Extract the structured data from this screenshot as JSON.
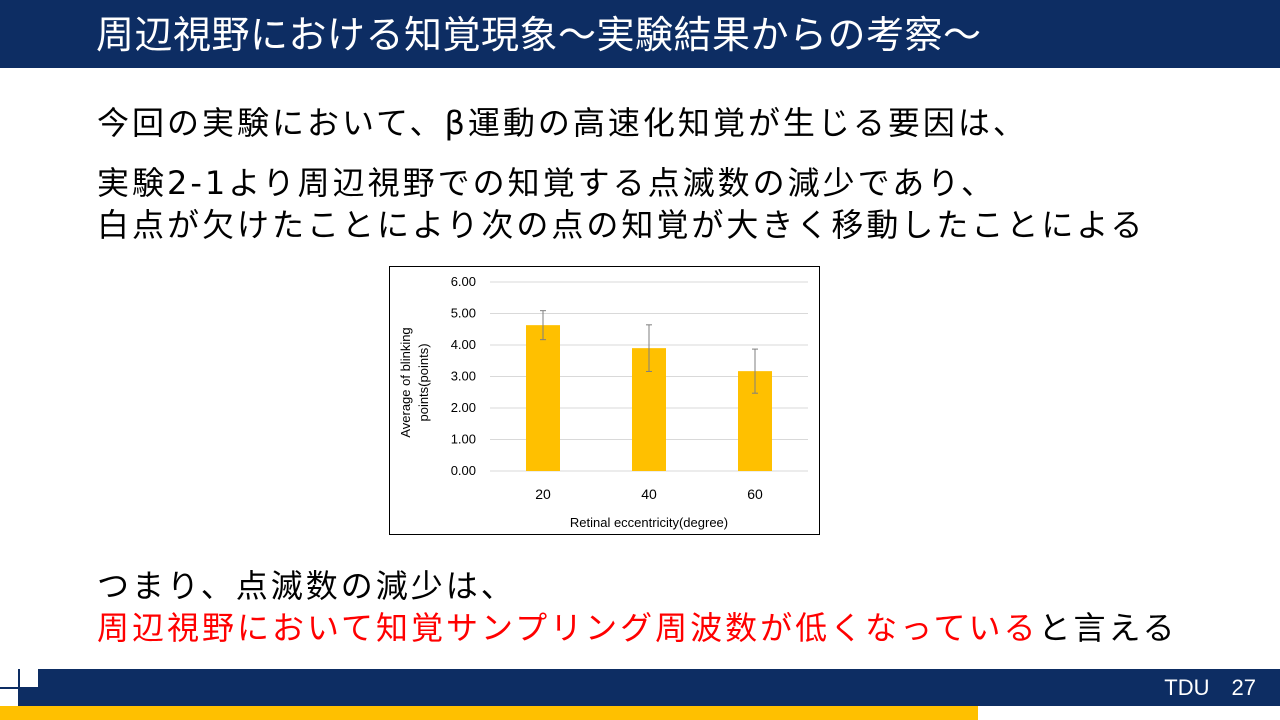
{
  "slide": {
    "title": "周辺視野における知覚現象～実験結果からの考察～",
    "body_line1": "今回の実験において、β運動の高速化知覚が生じる要因は、",
    "body_line2": "実験2-1より周辺視野での知覚する点滅数の減少であり、",
    "body_line3": "白点が欠けたことにより次の点の知覚が大きく移動したことによる",
    "conclusion_line1": "つまり、点滅数の減少は、",
    "conclusion_red": "周辺視野において知覚サンプリング周波数が低くなっている",
    "conclusion_tail": "と言える"
  },
  "footer": {
    "org": "TDU",
    "page_number": "27"
  },
  "colors": {
    "navy": "#0d2d63",
    "gold": "#ffc000",
    "red": "#ff0000"
  },
  "chart_data": {
    "type": "bar",
    "categories": [
      "20",
      "40",
      "60"
    ],
    "values": [
      4.63,
      3.9,
      3.17
    ],
    "error": [
      0.46,
      0.74,
      0.7
    ],
    "xlabel": "Retinal eccentricity(degree)",
    "ylabel_line1": "Average of blinking",
    "ylabel_line2": "points(points)",
    "ylim": [
      0,
      6
    ],
    "yticks": [
      "0.00",
      "1.00",
      "2.00",
      "3.00",
      "4.00",
      "5.00",
      "6.00"
    ],
    "grid": true,
    "bar_color": "#ffc000",
    "legend": "none"
  }
}
